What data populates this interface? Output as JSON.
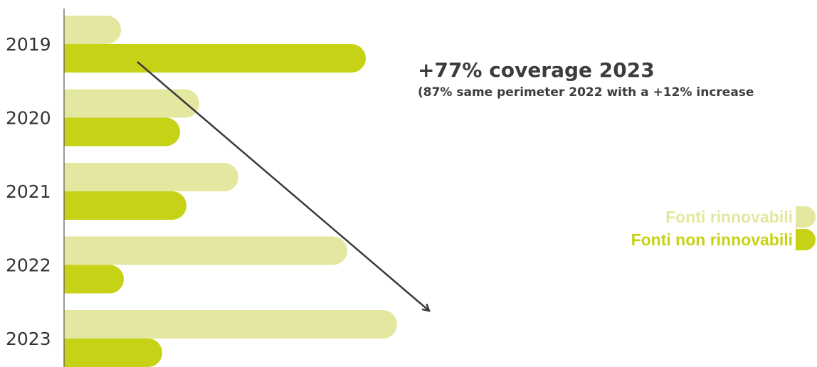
{
  "chart_data": {
    "type": "bar",
    "orientation": "horizontal",
    "categories": [
      "2019",
      "2020",
      "2021",
      "2022",
      "2023"
    ],
    "series": [
      {
        "name": "Fonti rinnovabili",
        "color": "#e3e7a0",
        "values": [
          80,
          190,
          245,
          398,
          468
        ]
      },
      {
        "name": "Fonti non rinnovabili",
        "color": "#c5d215",
        "values": [
          424,
          163,
          172,
          84,
          138
        ]
      }
    ],
    "xlim": [
      0,
      1000
    ],
    "grid": false,
    "axis_line": "left",
    "legend_position": "right",
    "annotation": {
      "headline": "+77% coverage 2023",
      "subline": "(87% same perimeter 2022 with a +12% increase",
      "arrow": "trend arrow from 2019 down toward 2023"
    }
  }
}
